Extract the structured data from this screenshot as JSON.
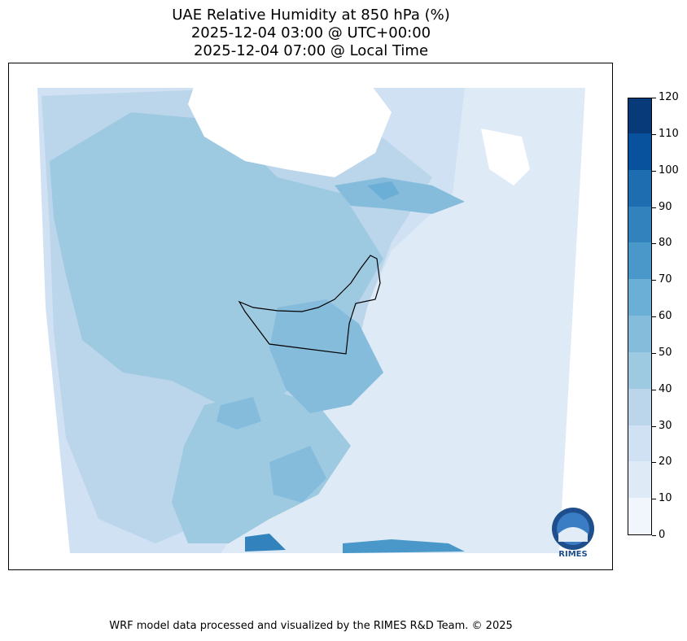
{
  "title_lines": [
    "UAE Relative Humidity at 850 hPa (%)",
    "2025-12-04 03:00 @ UTC+00:00",
    "2025-12-04 07:00 @ Local Time"
  ],
  "colorbar": {
    "levels": [
      0,
      10,
      20,
      30,
      40,
      50,
      60,
      70,
      80,
      90,
      100,
      110,
      120
    ],
    "tick_labels": [
      "0",
      "10",
      "20",
      "30",
      "40",
      "50",
      "60",
      "70",
      "80",
      "90",
      "100",
      "110",
      "120"
    ],
    "colors": [
      "#f0f6fc",
      "#deebf7",
      "#cfe1f2",
      "#bbd6eb",
      "#9ecae1",
      "#85bcdc",
      "#6baed6",
      "#4a98c9",
      "#3182bd",
      "#1f6db1",
      "#08519c",
      "#083a7a"
    ]
  },
  "logo": {
    "text": "RIMES"
  },
  "footer": "WRF model data processed and visualized by the RIMES R&D Team. © 2025"
}
